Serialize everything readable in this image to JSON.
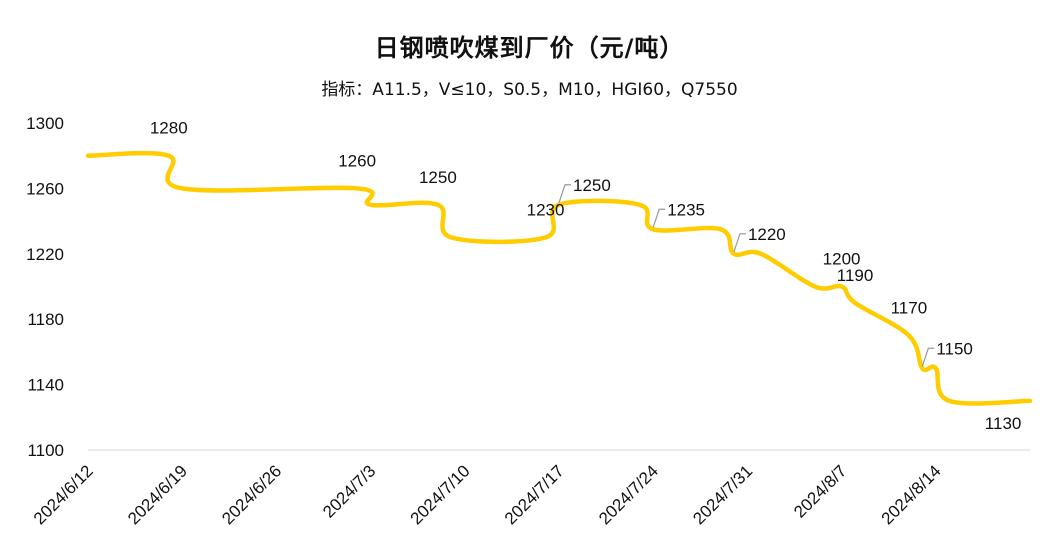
{
  "chart_data": {
    "type": "line",
    "title": "日钢喷吹煤到厂价（元/吨）",
    "subtitle": "指标：A11.5，V≤10，S0.5，M10，HGI60，Q7550",
    "x_tick_labels": [
      "2024/6/12",
      "2024/6/19",
      "2024/6/26",
      "2024/7/3",
      "2024/7/10",
      "2024/7/17",
      "2024/7/24",
      "2024/7/31",
      "2024/8/7",
      "2024/8/14"
    ],
    "y_tick_labels": [
      "1100",
      "1140",
      "1180",
      "1220",
      "1260",
      "1300"
    ],
    "ylim": [
      1100,
      1300
    ],
    "grid": false,
    "color": "#FFCC00",
    "x_domain": [
      "2024-06-12",
      "2024-08-21"
    ],
    "series": [
      {
        "points": [
          [
            "2024-06-12",
            1280
          ],
          [
            "2024-06-18",
            1280
          ],
          [
            "2024-06-19",
            1260
          ],
          [
            "2024-07-02",
            1260
          ],
          [
            "2024-07-03",
            1250
          ],
          [
            "2024-07-08",
            1250
          ],
          [
            "2024-07-09",
            1230
          ],
          [
            "2024-07-16",
            1230
          ],
          [
            "2024-07-17",
            1250
          ],
          [
            "2024-07-23",
            1250
          ],
          [
            "2024-07-24",
            1235
          ],
          [
            "2024-07-29",
            1235
          ],
          [
            "2024-07-30",
            1220
          ],
          [
            "2024-08-01",
            1220
          ],
          [
            "2024-08-05",
            1200
          ],
          [
            "2024-08-07",
            1200
          ],
          [
            "2024-08-08",
            1190
          ],
          [
            "2024-08-12",
            1170
          ],
          [
            "2024-08-13",
            1150
          ],
          [
            "2024-08-14",
            1150
          ],
          [
            "2024-08-15",
            1130
          ],
          [
            "2024-08-21",
            1130
          ]
        ]
      }
    ],
    "data_labels": [
      {
        "text": "1280",
        "date": "2024-06-18",
        "value": 1280,
        "leader": false
      },
      {
        "text": "1260",
        "date": "2024-07-02",
        "value": 1260,
        "leader": false
      },
      {
        "text": "1250",
        "date": "2024-07-08",
        "value": 1250,
        "leader": false
      },
      {
        "text": "1230",
        "date": "2024-07-16",
        "value": 1230,
        "leader": false
      },
      {
        "text": "1250",
        "date": "2024-07-17",
        "value": 1250,
        "leader": true
      },
      {
        "text": "1235",
        "date": "2024-07-24",
        "value": 1235,
        "leader": true
      },
      {
        "text": "1220",
        "date": "2024-07-30",
        "value": 1220,
        "leader": true
      },
      {
        "text": "1200",
        "date": "2024-08-07",
        "value": 1200,
        "leader": false
      },
      {
        "text": "1190",
        "date": "2024-08-08",
        "value": 1190,
        "leader": false
      },
      {
        "text": "1170",
        "date": "2024-08-12",
        "value": 1170,
        "leader": false
      },
      {
        "text": "1150",
        "date": "2024-08-13",
        "value": 1150,
        "leader": true
      },
      {
        "text": "1130",
        "date": "2024-08-19",
        "value": 1130,
        "leader": false
      }
    ]
  }
}
